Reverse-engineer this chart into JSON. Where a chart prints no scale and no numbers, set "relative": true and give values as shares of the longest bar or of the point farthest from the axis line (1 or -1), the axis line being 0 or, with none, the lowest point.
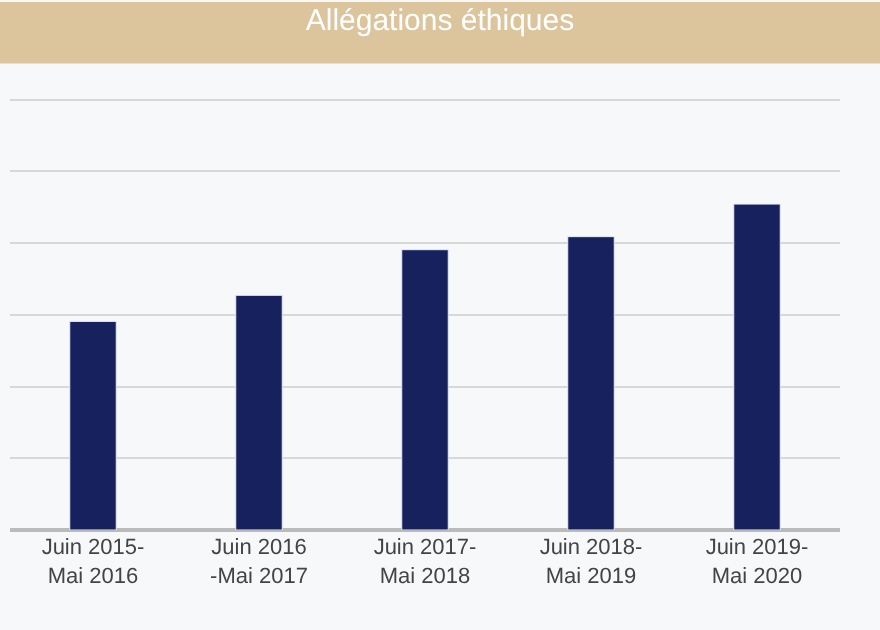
{
  "chart_data": {
    "type": "bar",
    "title": "Allégations éthiques",
    "categories": [
      "Juin 2015-\nMai 2016",
      "Juin 2016\n-Mai 2017",
      "Juin 2017-\nMai 2018",
      "Juin 2018-\nMai 2019",
      "Juin 2019-\nMai 2020"
    ],
    "values": [
      0.64,
      0.72,
      0.86,
      0.9,
      1
    ],
    "color": "#17215e",
    "relative": true,
    "grid": "y"
  }
}
